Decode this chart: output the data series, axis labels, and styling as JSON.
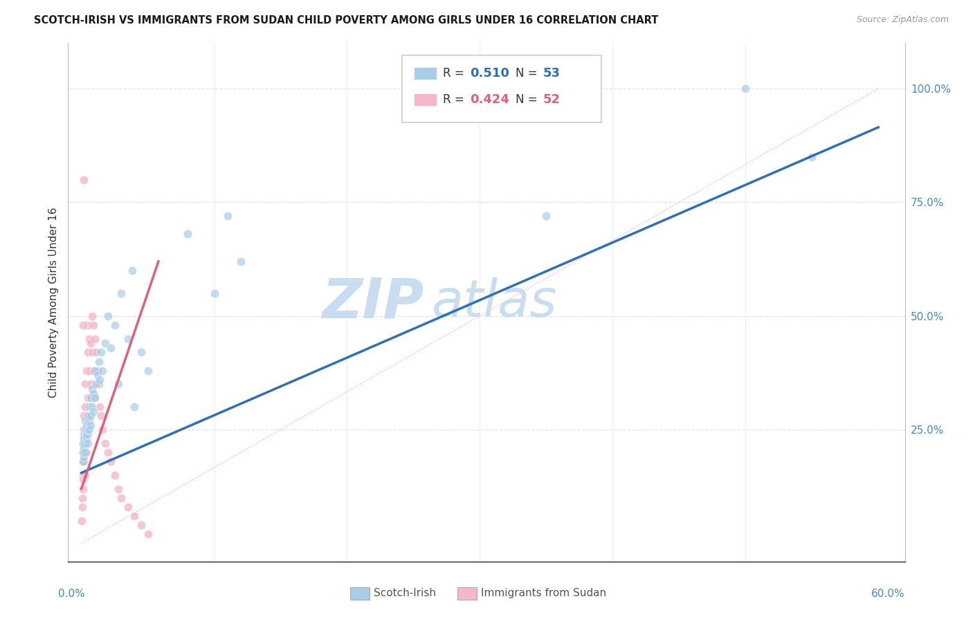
{
  "title": "SCOTCH-IRISH VS IMMIGRANTS FROM SUDAN CHILD POVERTY AMONG GIRLS UNDER 16 CORRELATION CHART",
  "source": "Source: ZipAtlas.com",
  "ylabel": "Child Poverty Among Girls Under 16",
  "legend_r1": "0.510",
  "legend_n1": "53",
  "legend_r2": "0.424",
  "legend_n2": "52",
  "blue_scatter_color": "#a8cde8",
  "pink_scatter_color": "#f5b8c8",
  "blue_line_color": "#2e6fba",
  "pink_line_color": "#e0607a",
  "ref_line_color": "#f0a0b8",
  "watermark_zip_color": "#c8ddf0",
  "watermark_atlas_color": "#c8ddf0",
  "axis_label_color": "#4488cc",
  "grid_color": "#e0e0e0",
  "title_color": "#1a1a1a",
  "source_color": "#999999",
  "legend_r_color": "#333333",
  "legend_blue_val_color": "#2e6fba",
  "legend_pink_val_color": "#e0607a",
  "bottom_legend_color": "#555555",
  "xlim_min": 0.0,
  "xlim_max": 0.6,
  "ylim_min": 0.0,
  "ylim_max": 1.05,
  "blue_line_x0": 0.0,
  "blue_line_y0": 0.155,
  "blue_line_x1": 0.6,
  "blue_line_y1": 0.915,
  "pink_line_x0": 0.0,
  "pink_line_y0": 0.12,
  "pink_line_x1": 0.058,
  "pink_line_y1": 0.62,
  "ref_line_x0": 0.0,
  "ref_line_y0": 0.0,
  "ref_line_x1": 0.6,
  "ref_line_y1": 1.0,
  "si_x": [
    0.001,
    0.001,
    0.001,
    0.002,
    0.002,
    0.002,
    0.002,
    0.003,
    0.003,
    0.003,
    0.003,
    0.004,
    0.004,
    0.004,
    0.005,
    0.005,
    0.005,
    0.006,
    0.006,
    0.006,
    0.007,
    0.007,
    0.007,
    0.008,
    0.008,
    0.009,
    0.009,
    0.01,
    0.01,
    0.011,
    0.012,
    0.013,
    0.014,
    0.015,
    0.016,
    0.018,
    0.02,
    0.022,
    0.025,
    0.028,
    0.03,
    0.035,
    0.038,
    0.04,
    0.045,
    0.05,
    0.08,
    0.1,
    0.11,
    0.12,
    0.35,
    0.5,
    0.55
  ],
  "si_y": [
    0.2,
    0.22,
    0.18,
    0.21,
    0.24,
    0.23,
    0.19,
    0.22,
    0.25,
    0.2,
    0.27,
    0.23,
    0.26,
    0.24,
    0.25,
    0.28,
    0.22,
    0.27,
    0.3,
    0.25,
    0.28,
    0.32,
    0.26,
    0.3,
    0.34,
    0.29,
    0.33,
    0.32,
    0.38,
    0.35,
    0.37,
    0.4,
    0.36,
    0.42,
    0.38,
    0.44,
    0.5,
    0.43,
    0.48,
    0.35,
    0.55,
    0.45,
    0.6,
    0.3,
    0.42,
    0.38,
    0.68,
    0.55,
    0.72,
    0.62,
    0.72,
    1.0,
    0.85
  ],
  "su_x": [
    0.0003,
    0.0005,
    0.0005,
    0.001,
    0.001,
    0.001,
    0.001,
    0.001,
    0.002,
    0.002,
    0.002,
    0.002,
    0.003,
    0.003,
    0.003,
    0.003,
    0.004,
    0.004,
    0.004,
    0.005,
    0.005,
    0.005,
    0.005,
    0.006,
    0.006,
    0.006,
    0.007,
    0.007,
    0.008,
    0.008,
    0.009,
    0.009,
    0.01,
    0.01,
    0.011,
    0.012,
    0.013,
    0.014,
    0.015,
    0.016,
    0.018,
    0.02,
    0.022,
    0.025,
    0.028,
    0.03,
    0.035,
    0.04,
    0.045,
    0.05,
    0.001,
    0.002
  ],
  "su_y": [
    0.05,
    0.1,
    0.08,
    0.12,
    0.15,
    0.18,
    0.2,
    0.14,
    0.22,
    0.25,
    0.28,
    0.18,
    0.3,
    0.35,
    0.2,
    0.15,
    0.38,
    0.25,
    0.2,
    0.42,
    0.48,
    0.32,
    0.24,
    0.45,
    0.38,
    0.28,
    0.44,
    0.35,
    0.5,
    0.42,
    0.48,
    0.38,
    0.45,
    0.32,
    0.42,
    0.38,
    0.35,
    0.3,
    0.28,
    0.25,
    0.22,
    0.2,
    0.18,
    0.15,
    0.12,
    0.1,
    0.08,
    0.06,
    0.04,
    0.02,
    0.48,
    0.8
  ]
}
